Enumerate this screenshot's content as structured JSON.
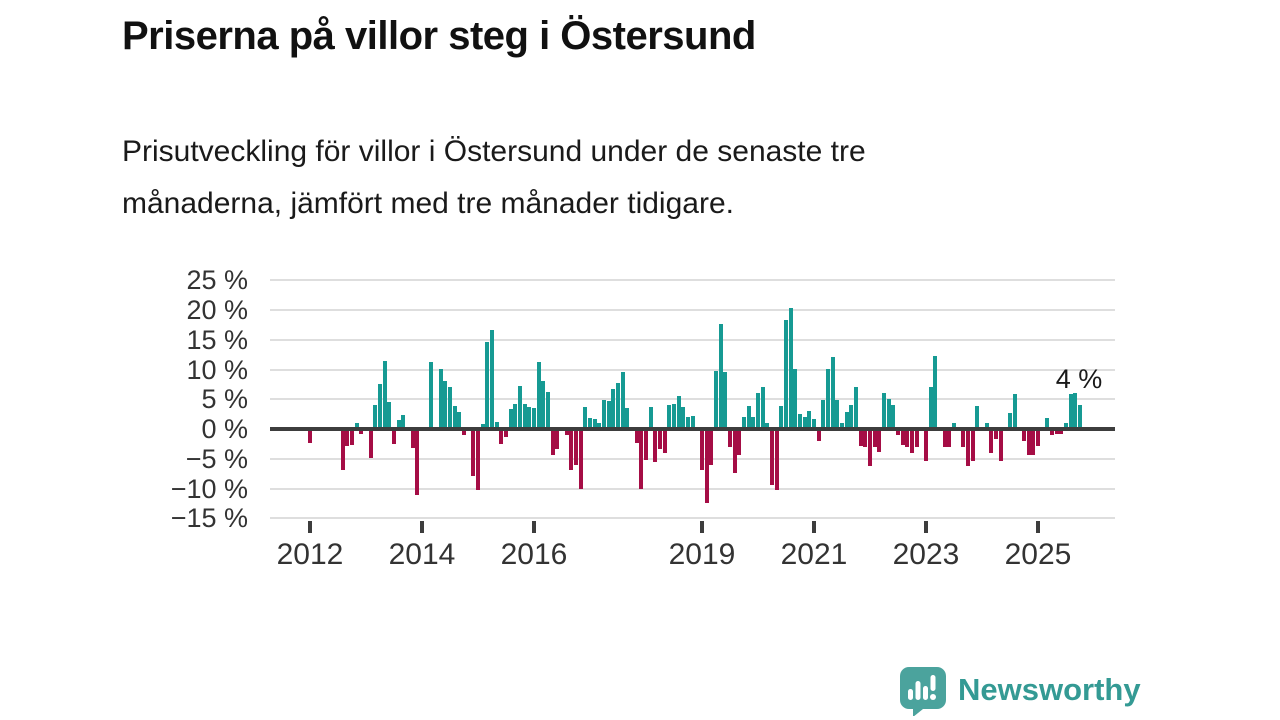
{
  "title": "Priserna på villor steg i Östersund",
  "subtitle_line1": "Prisutveckling för villor i Östersund under de senaste tre",
  "subtitle_line2": "månaderna, jämfört med tre månader tidigare.",
  "logo": {
    "text": "Newsworthy"
  },
  "colors": {
    "positive": "#169a93",
    "negative": "#a50d45",
    "axis": "#3d3d3d",
    "grid": "#dedede",
    "text": "#1a1a1a",
    "tick_text": "#333333",
    "brand_bubble": "#4ba39d",
    "brand_text": "#349a94"
  },
  "chart_data": {
    "type": "bar",
    "unit": "%",
    "ylim": [
      -15,
      25
    ],
    "grid": true,
    "annotation_label": "4 %",
    "annotation_value": 4,
    "y_ticks": [
      {
        "value": 25,
        "label": "25 %"
      },
      {
        "value": 20,
        "label": "20 %"
      },
      {
        "value": 15,
        "label": "15 %"
      },
      {
        "value": 10,
        "label": "10 %"
      },
      {
        "value": 5,
        "label": "5 %"
      },
      {
        "value": 0,
        "label": "0 %"
      },
      {
        "value": -5,
        "label": "−5 %"
      },
      {
        "value": -10,
        "label": "−10 %"
      },
      {
        "value": -15,
        "label": "−15 %"
      }
    ],
    "x_ticks": [
      {
        "label": "2012",
        "date": "2012-01"
      },
      {
        "label": "2014",
        "date": "2014-01"
      },
      {
        "label": "2016",
        "date": "2016-01"
      },
      {
        "label": "2019",
        "date": "2019-01"
      },
      {
        "label": "2021",
        "date": "2021-01"
      },
      {
        "label": "2023",
        "date": "2023-01"
      },
      {
        "label": "2025",
        "date": "2025-01"
      }
    ],
    "values": [
      [
        "2012-01",
        -2.4
      ],
      [
        "2012-08",
        -6.9
      ],
      [
        "2012-09",
        -2.9
      ],
      [
        "2012-10",
        -2.7
      ],
      [
        "2012-11",
        1.0
      ],
      [
        "2012-12",
        -0.8
      ],
      [
        "2013-02",
        -4.9
      ],
      [
        "2013-03",
        4.0
      ],
      [
        "2013-04",
        7.5
      ],
      [
        "2013-05",
        11.5
      ],
      [
        "2013-06",
        4.6
      ],
      [
        "2013-07",
        -2.6
      ],
      [
        "2013-08",
        1.5
      ],
      [
        "2013-09",
        2.4
      ],
      [
        "2013-11",
        -3.2
      ],
      [
        "2013-12",
        -11.1
      ],
      [
        "2014-03",
        11.3
      ],
      [
        "2014-05",
        10.1
      ],
      [
        "2014-06",
        8.1
      ],
      [
        "2014-07",
        7.0
      ],
      [
        "2014-08",
        3.8
      ],
      [
        "2014-09",
        2.8
      ],
      [
        "2014-10",
        -1.0
      ],
      [
        "2014-12",
        -7.9
      ],
      [
        "2015-01",
        -10.2
      ],
      [
        "2015-02",
        0.9
      ],
      [
        "2015-03",
        14.6
      ],
      [
        "2015-04",
        16.7
      ],
      [
        "2015-05",
        1.2
      ],
      [
        "2015-06",
        -2.5
      ],
      [
        "2015-07",
        -1.4
      ],
      [
        "2015-08",
        3.3
      ],
      [
        "2015-09",
        4.2
      ],
      [
        "2015-10",
        7.2
      ],
      [
        "2015-11",
        4.2
      ],
      [
        "2015-12",
        3.7
      ],
      [
        "2016-01",
        3.5
      ],
      [
        "2016-02",
        11.2
      ],
      [
        "2016-03",
        8.0
      ],
      [
        "2016-04",
        6.3
      ],
      [
        "2016-05",
        -4.3
      ],
      [
        "2016-06",
        -3.4
      ],
      [
        "2016-08",
        -1.0
      ],
      [
        "2016-09",
        -6.9
      ],
      [
        "2016-10",
        -6.0
      ],
      [
        "2016-11",
        -10.1
      ],
      [
        "2016-12",
        3.7
      ],
      [
        "2017-01",
        1.8
      ],
      [
        "2017-02",
        1.7
      ],
      [
        "2017-03",
        1.0
      ],
      [
        "2017-04",
        4.8
      ],
      [
        "2017-05",
        4.7
      ],
      [
        "2017-06",
        6.7
      ],
      [
        "2017-07",
        7.8
      ],
      [
        "2017-08",
        9.5
      ],
      [
        "2017-09",
        3.5
      ],
      [
        "2017-11",
        -2.4
      ],
      [
        "2017-12",
        -10.0
      ],
      [
        "2018-01",
        -5.2
      ],
      [
        "2018-02",
        3.7
      ],
      [
        "2018-03",
        -5.5
      ],
      [
        "2018-04",
        -3.3
      ],
      [
        "2018-05",
        -4.1
      ],
      [
        "2018-06",
        4.1
      ],
      [
        "2018-07",
        4.2
      ],
      [
        "2018-08",
        5.6
      ],
      [
        "2018-09",
        3.7
      ],
      [
        "2018-10",
        2.1
      ],
      [
        "2018-11",
        2.2
      ],
      [
        "2019-01",
        -6.9
      ],
      [
        "2019-02",
        -12.4
      ],
      [
        "2019-03",
        -6.1
      ],
      [
        "2019-04",
        9.8
      ],
      [
        "2019-05",
        17.6
      ],
      [
        "2019-06",
        9.5
      ],
      [
        "2019-07",
        -3.0
      ],
      [
        "2019-08",
        -7.4
      ],
      [
        "2019-09",
        -4.4
      ],
      [
        "2019-10",
        2.0
      ],
      [
        "2019-11",
        3.9
      ],
      [
        "2019-12",
        2.0
      ],
      [
        "2020-01",
        6.0
      ],
      [
        "2020-02",
        7.0
      ],
      [
        "2020-03",
        1.0
      ],
      [
        "2020-04",
        -9.4
      ],
      [
        "2020-05",
        -10.3
      ],
      [
        "2020-06",
        3.9
      ],
      [
        "2020-07",
        18.4
      ],
      [
        "2020-08",
        20.3
      ],
      [
        "2020-09",
        10.1
      ],
      [
        "2020-10",
        2.5
      ],
      [
        "2020-11",
        2.0
      ],
      [
        "2020-12",
        3.1
      ],
      [
        "2021-01",
        1.6
      ],
      [
        "2021-02",
        -2.1
      ],
      [
        "2021-03",
        4.8
      ],
      [
        "2021-04",
        10.1
      ],
      [
        "2021-05",
        12.1
      ],
      [
        "2021-06",
        4.8
      ],
      [
        "2021-07",
        1.0
      ],
      [
        "2021-08",
        2.8
      ],
      [
        "2021-09",
        4.0
      ],
      [
        "2021-10",
        7.0
      ],
      [
        "2021-11",
        -2.8
      ],
      [
        "2021-12",
        -3.1
      ],
      [
        "2022-01",
        -6.2
      ],
      [
        "2022-02",
        -3.1
      ],
      [
        "2022-03",
        -3.9
      ],
      [
        "2022-04",
        6.0
      ],
      [
        "2022-05",
        5.0
      ],
      [
        "2022-06",
        4.0
      ],
      [
        "2022-07",
        -1.0
      ],
      [
        "2022-08",
        -2.7
      ],
      [
        "2022-09",
        -3.1
      ],
      [
        "2022-10",
        -4.1
      ],
      [
        "2022-11",
        -3.1
      ],
      [
        "2023-01",
        -5.4
      ],
      [
        "2023-02",
        7.0
      ],
      [
        "2023-03",
        12.2
      ],
      [
        "2023-05",
        -3.1
      ],
      [
        "2023-06",
        -3.1
      ],
      [
        "2023-07",
        1.0
      ],
      [
        "2023-09",
        -3.1
      ],
      [
        "2023-10",
        -6.2
      ],
      [
        "2023-11",
        -5.4
      ],
      [
        "2023-12",
        3.9
      ],
      [
        "2024-02",
        1.0
      ],
      [
        "2024-03",
        -4.1
      ],
      [
        "2024-04",
        -1.6
      ],
      [
        "2024-05",
        -5.3
      ],
      [
        "2024-07",
        2.7
      ],
      [
        "2024-08",
        5.9
      ],
      [
        "2024-10",
        -2.0
      ],
      [
        "2024-11",
        -4.3
      ],
      [
        "2024-12",
        -4.3
      ],
      [
        "2025-01",
        -2.9
      ],
      [
        "2025-03",
        1.9
      ],
      [
        "2025-04",
        -1.0
      ],
      [
        "2025-05",
        -0.9
      ],
      [
        "2025-06",
        -0.9
      ],
      [
        "2025-07",
        1.0
      ],
      [
        "2025-08",
        5.8
      ],
      [
        "2025-09",
        6.0
      ],
      [
        "2025-10",
        4.0
      ]
    ]
  }
}
